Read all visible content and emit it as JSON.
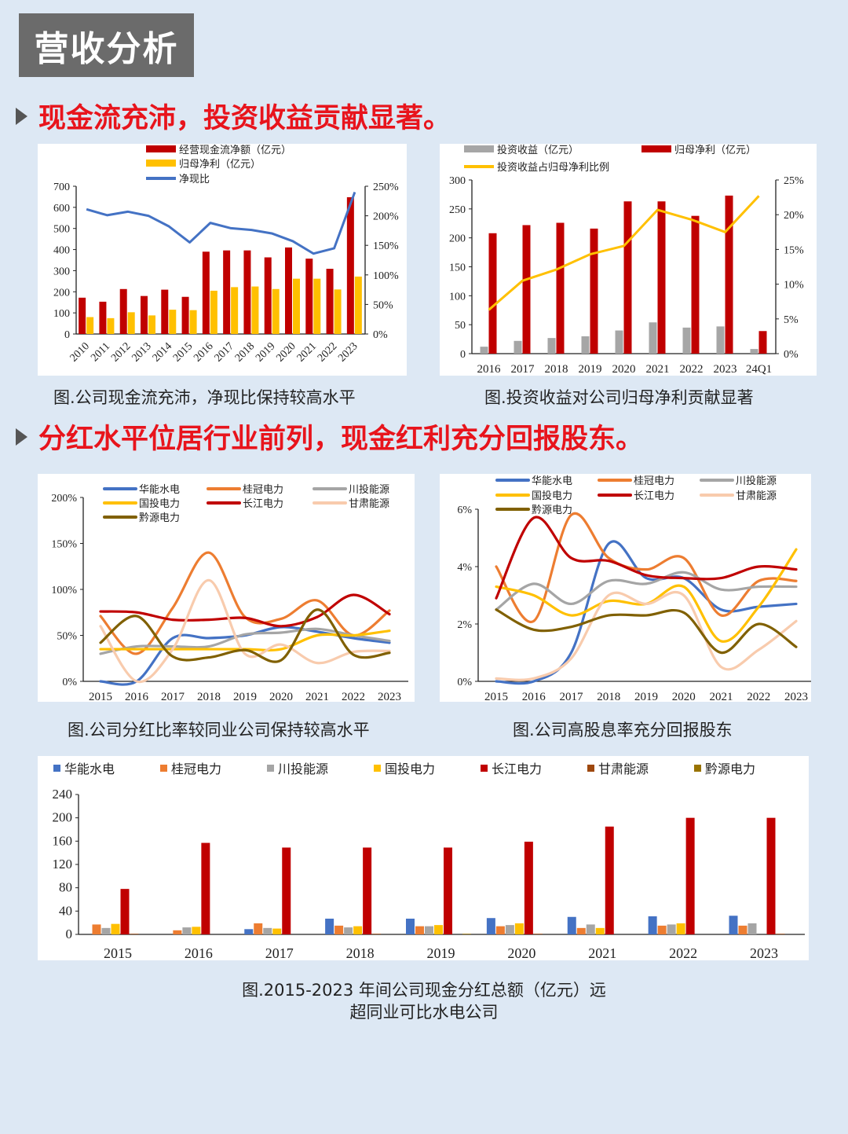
{
  "page": {
    "title": "营收分析",
    "heading1": "现金流充沛，投资收益贡献显著。",
    "heading2": "分红水平位居行业前列，现金红利充分回报股东。",
    "caption1": "图.公司现金流充沛，净现比保持较高水平",
    "caption2": "图.投资收益对公司归母净利贡献显著",
    "caption3": "图.公司分红比率较同业公司保持较高水平",
    "caption4": "图.公司高股息率充分回报股东",
    "caption5_line1": "图.2015-2023 年间公司现金分红总额（亿元）远",
    "caption5_line2": "超同业可比水电公司"
  },
  "colors": {
    "heading": "#e8141c",
    "title_bg": "#6b6b6b",
    "background": "#dde8f4"
  },
  "chart_data": [
    {
      "type": "bar+line",
      "categories": [
        "2010",
        "2011",
        "2012",
        "2013",
        "2014",
        "2015",
        "2016",
        "2017",
        "2018",
        "2019",
        "2020",
        "2021",
        "2022",
        "2023"
      ],
      "left_ticks": [
        "0",
        "100",
        "200",
        "300",
        "400",
        "500",
        "600",
        "700"
      ],
      "right_ticks": [
        "0%",
        "50%",
        "100%",
        "150%",
        "200%",
        "250%"
      ],
      "ylim": [
        0,
        700
      ],
      "y2lim": [
        0,
        250
      ],
      "series": [
        {
          "name": "经营现金流净额（亿元）",
          "kind": "bar",
          "color": "#c00000",
          "values": [
            172,
            153,
            213,
            180,
            210,
            176,
            390,
            396,
            396,
            363,
            410,
            357,
            309,
            648
          ]
        },
        {
          "name": "归母净利（亿元）",
          "kind": "bar",
          "color": "#ffc000",
          "values": [
            80,
            75,
            103,
            88,
            115,
            113,
            205,
            222,
            225,
            213,
            262,
            262,
            211,
            272
          ]
        },
        {
          "name": "净现比",
          "kind": "line",
          "axis": "right",
          "color": "#4472c4",
          "values": [
            211,
            201,
            207,
            200,
            182,
            155,
            188,
            179,
            176,
            170,
            157,
            136,
            145,
            240
          ]
        }
      ]
    },
    {
      "type": "bar+line",
      "categories": [
        "2016",
        "2017",
        "2018",
        "2019",
        "2020",
        "2021",
        "2022",
        "2023",
        "24Q1"
      ],
      "left_ticks": [
        "0",
        "50",
        "100",
        "150",
        "200",
        "250",
        "300"
      ],
      "right_ticks": [
        "0%",
        "5%",
        "10%",
        "15%",
        "20%",
        "25%"
      ],
      "ylim": [
        0,
        300
      ],
      "y2lim": [
        0,
        25
      ],
      "series": [
        {
          "name": "投资收益（亿元）",
          "kind": "bar",
          "color": "#a6a6a6",
          "values": [
            12,
            22,
            27,
            30,
            40,
            54,
            45,
            47,
            8
          ]
        },
        {
          "name": "归母净利（亿元）",
          "kind": "bar",
          "color": "#c00000",
          "values": [
            208,
            222,
            226,
            216,
            263,
            263,
            238,
            273,
            39
          ]
        },
        {
          "name": "投资收益占归母净利比例",
          "kind": "line",
          "axis": "right",
          "color": "#ffc000",
          "values": [
            6.3,
            10.5,
            12.1,
            14.3,
            15.5,
            20.7,
            19.3,
            17.5,
            22.7
          ]
        }
      ]
    },
    {
      "type": "line",
      "smooth": true,
      "categories": [
        "2015",
        "2016",
        "2017",
        "2018",
        "2019",
        "2020",
        "2021",
        "2022",
        "2023"
      ],
      "left_ticks": [
        "0%",
        "50%",
        "100%",
        "150%",
        "200%"
      ],
      "ylim": [
        0,
        200
      ],
      "series": [
        {
          "name": "华能水电",
          "color": "#4472c4",
          "values": [
            0,
            0,
            47,
            47,
            50,
            59,
            54,
            47,
            42
          ]
        },
        {
          "name": "桂冠电力",
          "color": "#ed7d31",
          "values": [
            71,
            30,
            80,
            140,
            70,
            68,
            88,
            50,
            77
          ]
        },
        {
          "name": "川投能源",
          "color": "#a5a5a5",
          "values": [
            30,
            38,
            38,
            38,
            51,
            53,
            57,
            50,
            44
          ]
        },
        {
          "name": "国投电力",
          "color": "#ffc000",
          "values": [
            35,
            35,
            35,
            35,
            35,
            35,
            50,
            50,
            55
          ]
        },
        {
          "name": "长江电力",
          "color": "#c00000",
          "values": [
            76,
            75,
            67,
            67,
            69,
            60,
            70,
            94,
            73
          ]
        },
        {
          "name": "甘肃能源",
          "color": "#f8cbad",
          "values": [
            60,
            0,
            35,
            110,
            30,
            40,
            20,
            32,
            33
          ]
        },
        {
          "name": "黔源电力",
          "color": "#806000",
          "values": [
            42,
            71,
            27,
            26,
            34,
            23,
            78,
            29,
            31
          ]
        }
      ]
    },
    {
      "type": "line",
      "smooth": true,
      "categories": [
        "2015",
        "2016",
        "2017",
        "2018",
        "2019",
        "2020",
        "2021",
        "2022",
        "2023"
      ],
      "left_ticks": [
        "0%",
        "2%",
        "4%",
        "6%"
      ],
      "ylim": [
        0,
        6
      ],
      "series": [
        {
          "name": "华能水电",
          "color": "#4472c4",
          "values": [
            0,
            0,
            1.0,
            4.8,
            3.6,
            3.6,
            2.5,
            2.6,
            2.7
          ]
        },
        {
          "name": "桂冠电力",
          "color": "#ed7d31",
          "values": [
            4.0,
            2.1,
            5.8,
            4.3,
            3.9,
            4.3,
            2.3,
            3.5,
            3.5
          ]
        },
        {
          "name": "川投能源",
          "color": "#a5a5a5",
          "values": [
            2.5,
            3.4,
            2.7,
            3.5,
            3.4,
            3.8,
            3.2,
            3.3,
            3.3
          ]
        },
        {
          "name": "国投电力",
          "color": "#ffc000",
          "values": [
            3.3,
            3.0,
            2.3,
            2.8,
            2.7,
            3.3,
            1.4,
            2.6,
            4.6
          ]
        },
        {
          "name": "长江电力",
          "color": "#c00000",
          "values": [
            2.9,
            5.7,
            4.3,
            4.2,
            3.7,
            3.6,
            3.6,
            4.0,
            3.9
          ]
        },
        {
          "name": "甘肃能源",
          "color": "#f8cbad",
          "values": [
            0.1,
            0.1,
            0.8,
            3.0,
            2.7,
            3.0,
            0.5,
            1.1,
            2.1
          ]
        },
        {
          "name": "黔源电力",
          "color": "#806000",
          "values": [
            2.5,
            1.8,
            1.9,
            2.3,
            2.3,
            2.4,
            1.0,
            2.0,
            1.2
          ]
        }
      ]
    },
    {
      "type": "bar",
      "categories": [
        "2015",
        "2016",
        "2017",
        "2018",
        "2019",
        "2020",
        "2021",
        "2022",
        "2023"
      ],
      "left_ticks": [
        "0",
        "40",
        "80",
        "120",
        "160",
        "200",
        "240"
      ],
      "ylim": [
        0,
        240
      ],
      "series": [
        {
          "name": "华能水电",
          "color": "#4472c4",
          "values": [
            0,
            0,
            9,
            27,
            27,
            28,
            30,
            31,
            32
          ]
        },
        {
          "name": "桂冠电力",
          "color": "#ed7d31",
          "values": [
            17,
            7,
            19,
            15,
            14,
            14,
            11,
            15,
            15
          ]
        },
        {
          "name": "川投能源",
          "color": "#a5a5a5",
          "values": [
            11,
            12,
            11,
            12,
            14,
            16,
            17,
            17,
            19
          ]
        },
        {
          "name": "国投电力",
          "color": "#ffc000",
          "values": [
            18,
            13,
            10,
            14,
            16,
            19,
            11,
            19,
            0
          ]
        },
        {
          "name": "长江电力",
          "color": "#c00000",
          "values": [
            78,
            157,
            149,
            149,
            149,
            159,
            185,
            200,
            200
          ]
        },
        {
          "name": "甘肃能源",
          "color": "#9e480e",
          "values": [
            1,
            0,
            0,
            1,
            0,
            1,
            0,
            0,
            1
          ]
        },
        {
          "name": "黔源电力",
          "color": "#997300",
          "values": [
            0,
            0,
            0,
            0,
            1,
            0,
            0,
            0,
            0
          ]
        }
      ]
    }
  ]
}
